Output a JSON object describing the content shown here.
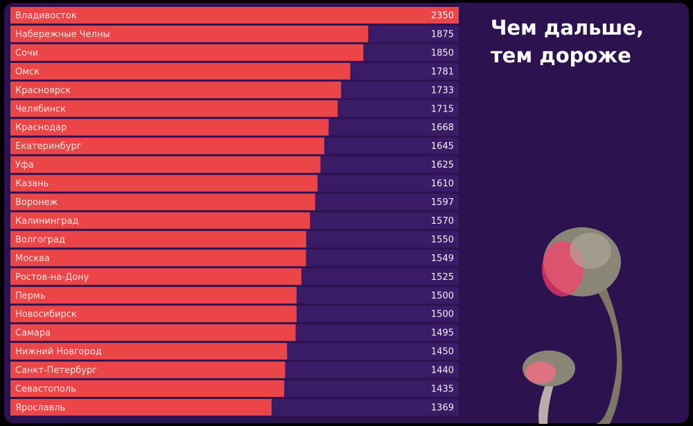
{
  "chart_data": {
    "type": "bar",
    "orientation": "horizontal",
    "title_lines": [
      "Чем дальше,",
      "тем дороже"
    ],
    "categories": [
      "Владивосток",
      "Набережные Челны",
      "Сочи",
      "Омск",
      "Красноярск",
      "Челябинск",
      "Краснодар",
      "Екатеринбург",
      "Уфа",
      "Казань",
      "Воронеж",
      "Калининград",
      "Волгоград",
      "Москва",
      "Ростов-на-Дону",
      "Пермь",
      "Новосибирск",
      "Самара",
      "Нижний Новгород",
      "Санкт-Петербург",
      "Севастополь",
      "Ярославль"
    ],
    "values": [
      2350,
      1875,
      1850,
      1781,
      1733,
      1715,
      1668,
      1645,
      1625,
      1610,
      1597,
      1570,
      1550,
      1549,
      1525,
      1500,
      1500,
      1495,
      1450,
      1440,
      1435,
      1369
    ],
    "color": "#ec4548",
    "xlim": [
      0,
      2350
    ]
  }
}
